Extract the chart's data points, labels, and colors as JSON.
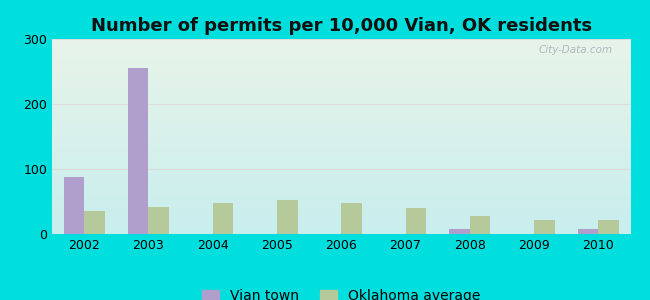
{
  "title": "Number of permits per 10,000 Vian, OK residents",
  "years": [
    2002,
    2003,
    2004,
    2005,
    2006,
    2007,
    2008,
    2009,
    2010
  ],
  "vian_values": [
    88,
    255,
    0,
    0,
    0,
    0,
    8,
    0,
    8
  ],
  "ok_values": [
    35,
    42,
    47,
    52,
    47,
    40,
    27,
    22,
    22
  ],
  "vian_color": "#b09fcc",
  "ok_color": "#b5c99a",
  "outer_bg": "#00dede",
  "grad_top_left": "#e8f4e8",
  "grad_bottom_right": "#c0eeee",
  "ylim": [
    0,
    300
  ],
  "yticks": [
    0,
    100,
    200,
    300
  ],
  "bar_width": 0.32,
  "title_fontsize": 13,
  "tick_fontsize": 9,
  "legend_fontsize": 10,
  "legend_vian": "Vian town",
  "legend_ok": "Oklahoma average",
  "watermark": "City-Data.com",
  "grid_color": "#dddddd",
  "watermark_color": "#b0b8c0"
}
